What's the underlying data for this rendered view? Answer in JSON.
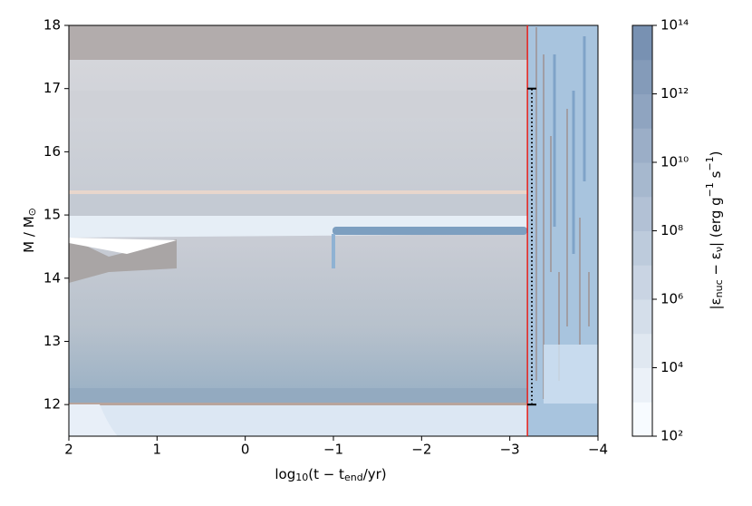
{
  "chart_data": {
    "type": "kippenhahn",
    "xlabel": [
      "log",
      "10",
      "(t − t",
      "end",
      "/yr)"
    ],
    "ylabel": [
      "M / M",
      "⊙"
    ],
    "colorbar_label": [
      "|ε",
      "nuc",
      " − ε",
      "ν",
      "| (erg g",
      "−1",
      " s",
      "−1",
      ")"
    ],
    "xlim": [
      2,
      -4
    ],
    "xticks": [
      2,
      1,
      0,
      {
        "value": -1,
        "label": "−1"
      },
      {
        "value": -2,
        "label": "−2"
      },
      {
        "value": -3,
        "label": "−3"
      },
      {
        "value": -4,
        "label": "−4"
      }
    ],
    "ylim": [
      11.5,
      18
    ],
    "yticks": [
      12,
      13,
      14,
      15,
      16,
      17,
      18
    ],
    "clim": [
      100,
      100000000000000
    ],
    "clog": true,
    "cticks": [
      {
        "value": 100,
        "label": "10²"
      },
      {
        "value": 10000,
        "label": "10⁴"
      },
      {
        "value": 1000000,
        "label": "10⁶"
      },
      {
        "value": 100000000,
        "label": "10⁸"
      },
      {
        "value": 10000000000,
        "label": "10¹⁰"
      },
      {
        "value": 1000000000000,
        "label": "10¹²"
      },
      {
        "value": 100000000000000,
        "label": "10¹⁴"
      }
    ],
    "colormap": [
      "#f7fbff",
      "#7891b2"
    ],
    "vline": {
      "x": -3.2,
      "color": "#e8201a"
    },
    "range_bar": {
      "x": -3.25,
      "y": [
        12,
        17
      ],
      "color": "#000000"
    }
  }
}
